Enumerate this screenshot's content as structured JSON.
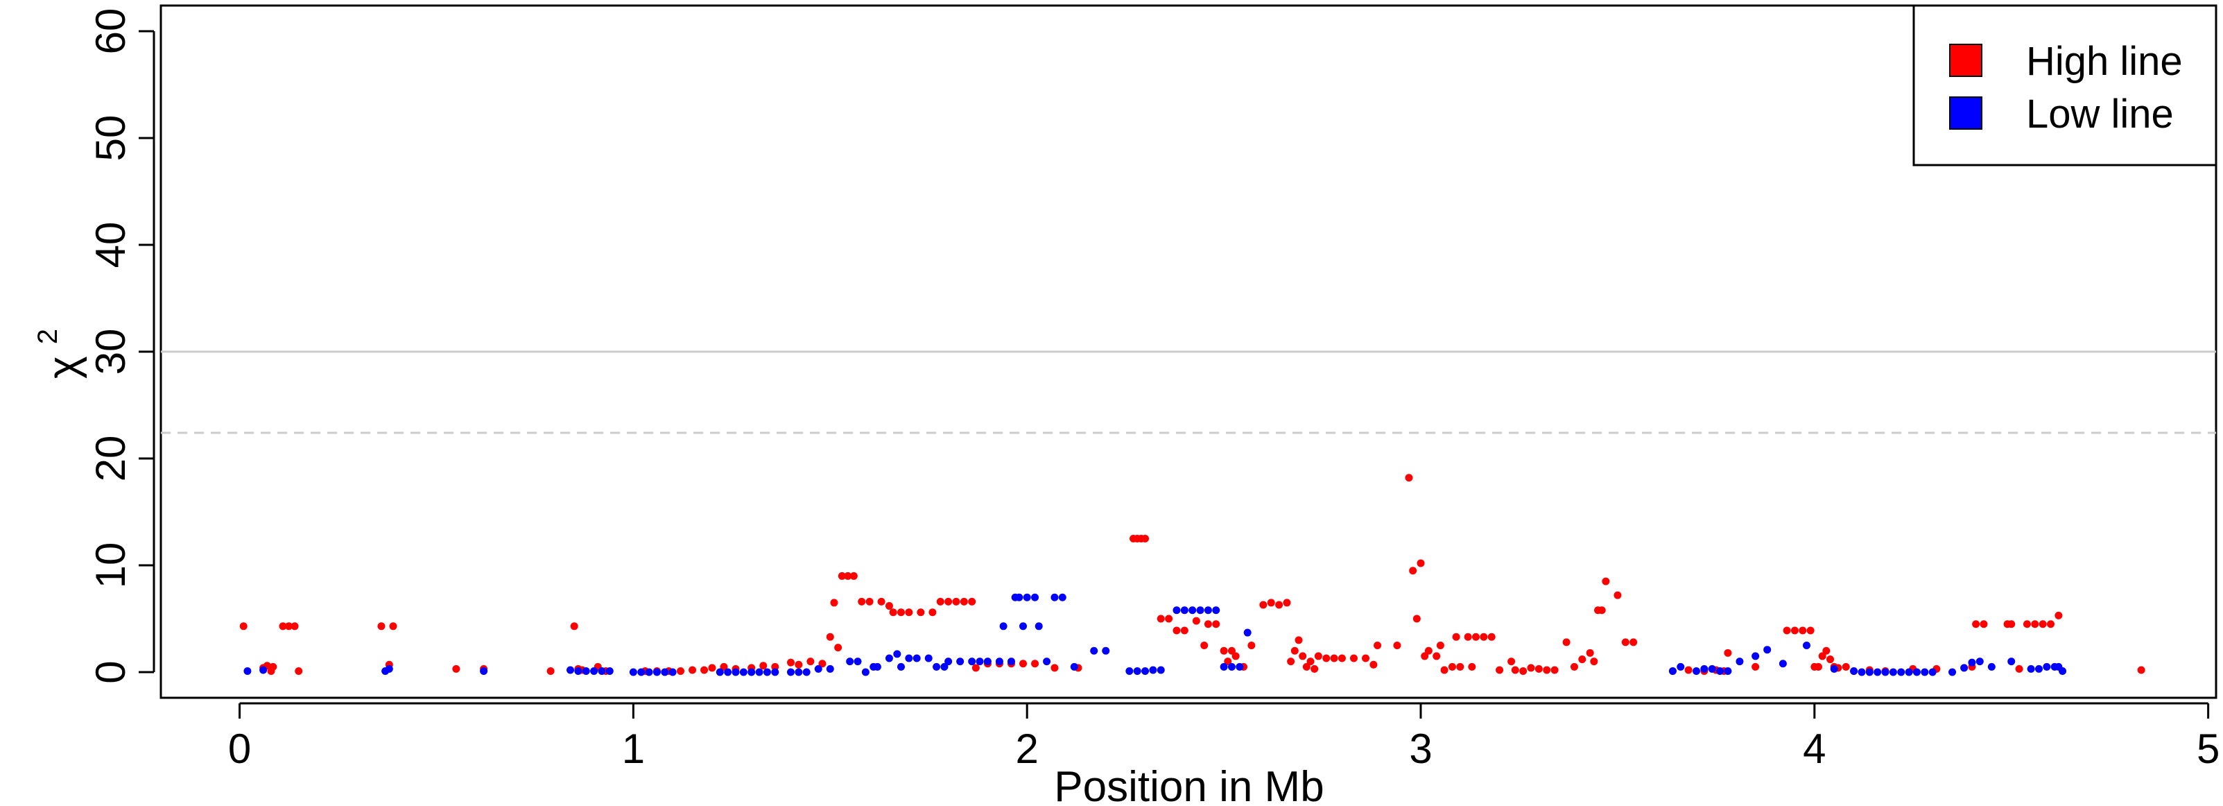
{
  "chart_data": {
    "type": "scatter",
    "xlabel": "Position in Mb",
    "ylabel": "χ",
    "ylabel_superscript": "2",
    "xlim": [
      -0.2,
      5.02
    ],
    "ylim": [
      -2.4,
      62.4
    ],
    "xticks": [
      0,
      1,
      2,
      3,
      4,
      5
    ],
    "yticks": [
      0,
      10,
      20,
      30,
      40,
      50,
      60
    ],
    "grid": false,
    "legend_position": "top-right",
    "reference_lines": [
      {
        "y": 30,
        "style": "solid",
        "color": "#cccccc"
      },
      {
        "y": 22.4,
        "style": "dashed",
        "color": "#cccccc"
      }
    ],
    "series": [
      {
        "name": "High line",
        "color": "#ff0000",
        "points": [
          [
            0.01,
            4.3
          ],
          [
            0.06,
            0.4
          ],
          [
            0.07,
            0.6
          ],
          [
            0.08,
            0.1
          ],
          [
            0.085,
            0.5
          ],
          [
            0.11,
            4.3
          ],
          [
            0.125,
            4.3
          ],
          [
            0.14,
            4.3
          ],
          [
            0.15,
            0.1
          ],
          [
            0.36,
            4.3
          ],
          [
            0.38,
            0.7
          ],
          [
            0.39,
            4.3
          ],
          [
            0.55,
            0.3
          ],
          [
            0.62,
            0.3
          ],
          [
            0.79,
            0.1
          ],
          [
            0.85,
            4.3
          ],
          [
            0.86,
            0.3
          ],
          [
            0.87,
            0.2
          ],
          [
            0.91,
            0.5
          ],
          [
            0.93,
            0.1
          ],
          [
            1.03,
            0.1
          ],
          [
            1.06,
            0.1
          ],
          [
            1.09,
            0.1
          ],
          [
            1.12,
            0.1
          ],
          [
            1.15,
            0.2
          ],
          [
            1.18,
            0.2
          ],
          [
            1.2,
            0.4
          ],
          [
            1.23,
            0.5
          ],
          [
            1.26,
            0.3
          ],
          [
            1.3,
            0.4
          ],
          [
            1.33,
            0.6
          ],
          [
            1.36,
            0.5
          ],
          [
            1.4,
            0.9
          ],
          [
            1.42,
            0.7
          ],
          [
            1.45,
            1.0
          ],
          [
            1.48,
            0.8
          ],
          [
            1.5,
            3.3
          ],
          [
            1.51,
            6.5
          ],
          [
            1.52,
            2.3
          ],
          [
            1.53,
            9.0
          ],
          [
            1.545,
            9.0
          ],
          [
            1.56,
            9.0
          ],
          [
            1.58,
            6.6
          ],
          [
            1.6,
            6.6
          ],
          [
            1.63,
            6.6
          ],
          [
            1.65,
            6.2
          ],
          [
            1.66,
            5.6
          ],
          [
            1.68,
            5.6
          ],
          [
            1.7,
            5.6
          ],
          [
            1.73,
            5.6
          ],
          [
            1.76,
            5.6
          ],
          [
            1.78,
            6.6
          ],
          [
            1.8,
            6.6
          ],
          [
            1.82,
            6.6
          ],
          [
            1.84,
            6.6
          ],
          [
            1.86,
            6.6
          ],
          [
            1.87,
            0.4
          ],
          [
            1.9,
            0.8
          ],
          [
            1.93,
            0.8
          ],
          [
            1.96,
            0.8
          ],
          [
            1.99,
            0.8
          ],
          [
            2.02,
            0.8
          ],
          [
            2.07,
            0.4
          ],
          [
            2.13,
            0.4
          ],
          [
            2.27,
            12.5
          ],
          [
            2.28,
            12.5
          ],
          [
            2.29,
            12.5
          ],
          [
            2.3,
            12.5
          ],
          [
            2.34,
            5.0
          ],
          [
            2.36,
            5.0
          ],
          [
            2.38,
            3.9
          ],
          [
            2.4,
            3.9
          ],
          [
            2.43,
            4.8
          ],
          [
            2.45,
            2.5
          ],
          [
            2.46,
            4.5
          ],
          [
            2.48,
            4.5
          ],
          [
            2.5,
            2.0
          ],
          [
            2.51,
            1.0
          ],
          [
            2.52,
            2.0
          ],
          [
            2.53,
            1.5
          ],
          [
            2.55,
            0.5
          ],
          [
            2.57,
            2.5
          ],
          [
            2.6,
            6.3
          ],
          [
            2.62,
            6.5
          ],
          [
            2.64,
            6.3
          ],
          [
            2.66,
            6.5
          ],
          [
            2.67,
            1.0
          ],
          [
            2.68,
            2.0
          ],
          [
            2.69,
            3.0
          ],
          [
            2.7,
            1.5
          ],
          [
            2.71,
            0.5
          ],
          [
            2.72,
            1.0
          ],
          [
            2.73,
            0.3
          ],
          [
            2.74,
            1.5
          ],
          [
            2.76,
            1.3
          ],
          [
            2.78,
            1.3
          ],
          [
            2.8,
            1.3
          ],
          [
            2.83,
            1.3
          ],
          [
            2.86,
            1.3
          ],
          [
            2.88,
            0.7
          ],
          [
            2.89,
            2.5
          ],
          [
            2.94,
            2.5
          ],
          [
            2.97,
            18.2
          ],
          [
            2.98,
            9.5
          ],
          [
            2.99,
            5.0
          ],
          [
            3.0,
            10.2
          ],
          [
            3.01,
            1.5
          ],
          [
            3.02,
            2.0
          ],
          [
            3.04,
            1.5
          ],
          [
            3.05,
            2.5
          ],
          [
            3.06,
            0.2
          ],
          [
            3.08,
            0.5
          ],
          [
            3.09,
            3.3
          ],
          [
            3.1,
            0.5
          ],
          [
            3.12,
            3.3
          ],
          [
            3.13,
            0.5
          ],
          [
            3.14,
            3.3
          ],
          [
            3.16,
            3.3
          ],
          [
            3.18,
            3.3
          ],
          [
            3.2,
            0.2
          ],
          [
            3.23,
            1.0
          ],
          [
            3.24,
            0.2
          ],
          [
            3.26,
            0.1
          ],
          [
            3.28,
            0.4
          ],
          [
            3.3,
            0.3
          ],
          [
            3.32,
            0.2
          ],
          [
            3.34,
            0.2
          ],
          [
            3.37,
            2.8
          ],
          [
            3.39,
            0.5
          ],
          [
            3.41,
            1.2
          ],
          [
            3.43,
            1.8
          ],
          [
            3.44,
            1.0
          ],
          [
            3.45,
            5.8
          ],
          [
            3.46,
            5.8
          ],
          [
            3.47,
            8.5
          ],
          [
            3.5,
            7.2
          ],
          [
            3.52,
            2.8
          ],
          [
            3.54,
            2.8
          ],
          [
            3.64,
            0.1
          ],
          [
            3.68,
            0.2
          ],
          [
            3.72,
            0.1
          ],
          [
            3.75,
            0.2
          ],
          [
            3.77,
            0.1
          ],
          [
            3.78,
            1.8
          ],
          [
            3.85,
            0.5
          ],
          [
            3.93,
            3.9
          ],
          [
            3.95,
            3.9
          ],
          [
            3.97,
            3.9
          ],
          [
            3.99,
            3.9
          ],
          [
            4.0,
            0.5
          ],
          [
            4.01,
            0.5
          ],
          [
            4.02,
            1.5
          ],
          [
            4.03,
            2.0
          ],
          [
            4.04,
            1.2
          ],
          [
            4.05,
            0.5
          ],
          [
            4.06,
            0.4
          ],
          [
            4.08,
            0.5
          ],
          [
            4.1,
            0.1
          ],
          [
            4.14,
            0.2
          ],
          [
            4.18,
            0.1
          ],
          [
            4.25,
            0.3
          ],
          [
            4.31,
            0.3
          ],
          [
            4.4,
            0.5
          ],
          [
            4.41,
            4.5
          ],
          [
            4.43,
            4.5
          ],
          [
            4.49,
            4.5
          ],
          [
            4.5,
            4.5
          ],
          [
            4.52,
            0.3
          ],
          [
            4.54,
            4.5
          ],
          [
            4.56,
            4.5
          ],
          [
            4.58,
            4.5
          ],
          [
            4.6,
            4.5
          ],
          [
            4.62,
            5.3
          ],
          [
            4.83,
            0.2
          ]
        ]
      },
      {
        "name": "Low line",
        "color": "#0000ff",
        "points": [
          [
            0.02,
            0.1
          ],
          [
            0.06,
            0.2
          ],
          [
            0.37,
            0.1
          ],
          [
            0.38,
            0.3
          ],
          [
            0.62,
            0.1
          ],
          [
            0.84,
            0.2
          ],
          [
            0.86,
            0.1
          ],
          [
            0.88,
            0.1
          ],
          [
            0.9,
            0.1
          ],
          [
            0.92,
            0.1
          ],
          [
            0.94,
            0.1
          ],
          [
            1.0,
            0.0
          ],
          [
            1.02,
            0.0
          ],
          [
            1.04,
            0.0
          ],
          [
            1.06,
            0.0
          ],
          [
            1.08,
            0.0
          ],
          [
            1.1,
            0.0
          ],
          [
            1.22,
            0.0
          ],
          [
            1.24,
            0.0
          ],
          [
            1.26,
            0.0
          ],
          [
            1.28,
            0.0
          ],
          [
            1.3,
            0.0
          ],
          [
            1.32,
            0.0
          ],
          [
            1.34,
            0.0
          ],
          [
            1.36,
            0.0
          ],
          [
            1.4,
            0.0
          ],
          [
            1.42,
            0.0
          ],
          [
            1.44,
            0.0
          ],
          [
            1.47,
            0.3
          ],
          [
            1.5,
            0.3
          ],
          [
            1.55,
            1.0
          ],
          [
            1.57,
            1.0
          ],
          [
            1.59,
            0.0
          ],
          [
            1.61,
            0.5
          ],
          [
            1.62,
            0.5
          ],
          [
            1.65,
            1.3
          ],
          [
            1.67,
            1.7
          ],
          [
            1.68,
            0.5
          ],
          [
            1.7,
            1.3
          ],
          [
            1.72,
            1.3
          ],
          [
            1.75,
            1.3
          ],
          [
            1.77,
            0.5
          ],
          [
            1.79,
            0.5
          ],
          [
            1.8,
            1.0
          ],
          [
            1.83,
            1.0
          ],
          [
            1.86,
            1.0
          ],
          [
            1.88,
            1.0
          ],
          [
            1.9,
            1.0
          ],
          [
            1.93,
            1.0
          ],
          [
            1.94,
            4.3
          ],
          [
            1.96,
            1.0
          ],
          [
            1.97,
            7.0
          ],
          [
            1.98,
            7.0
          ],
          [
            1.99,
            4.3
          ],
          [
            2.0,
            7.0
          ],
          [
            2.02,
            7.0
          ],
          [
            2.03,
            4.3
          ],
          [
            2.05,
            1.0
          ],
          [
            2.07,
            7.0
          ],
          [
            2.09,
            7.0
          ],
          [
            2.12,
            0.5
          ],
          [
            2.17,
            2.0
          ],
          [
            2.2,
            2.0
          ],
          [
            2.26,
            0.1
          ],
          [
            2.28,
            0.1
          ],
          [
            2.3,
            0.1
          ],
          [
            2.32,
            0.2
          ],
          [
            2.34,
            0.2
          ],
          [
            2.38,
            5.8
          ],
          [
            2.4,
            5.8
          ],
          [
            2.42,
            5.8
          ],
          [
            2.44,
            5.8
          ],
          [
            2.46,
            5.8
          ],
          [
            2.48,
            5.8
          ],
          [
            2.5,
            0.5
          ],
          [
            2.52,
            0.5
          ],
          [
            2.54,
            0.5
          ],
          [
            2.56,
            3.7
          ],
          [
            3.64,
            0.1
          ],
          [
            3.66,
            0.5
          ],
          [
            3.7,
            0.1
          ],
          [
            3.72,
            0.3
          ],
          [
            3.74,
            0.3
          ],
          [
            3.76,
            0.1
          ],
          [
            3.78,
            0.1
          ],
          [
            3.81,
            1.0
          ],
          [
            3.85,
            1.5
          ],
          [
            3.88,
            2.1
          ],
          [
            3.92,
            0.8
          ],
          [
            3.98,
            2.5
          ],
          [
            4.05,
            0.3
          ],
          [
            4.1,
            0.1
          ],
          [
            4.12,
            0.0
          ],
          [
            4.14,
            0.0
          ],
          [
            4.16,
            0.0
          ],
          [
            4.18,
            0.0
          ],
          [
            4.2,
            0.0
          ],
          [
            4.22,
            0.0
          ],
          [
            4.24,
            0.0
          ],
          [
            4.26,
            0.0
          ],
          [
            4.28,
            0.0
          ],
          [
            4.3,
            0.0
          ],
          [
            4.35,
            0.0
          ],
          [
            4.38,
            0.4
          ],
          [
            4.4,
            0.9
          ],
          [
            4.42,
            1.0
          ],
          [
            4.45,
            0.5
          ],
          [
            4.5,
            1.0
          ],
          [
            4.55,
            0.3
          ],
          [
            4.57,
            0.3
          ],
          [
            4.59,
            0.5
          ],
          [
            4.61,
            0.5
          ],
          [
            4.62,
            0.5
          ],
          [
            4.63,
            0.1
          ]
        ]
      }
    ]
  }
}
